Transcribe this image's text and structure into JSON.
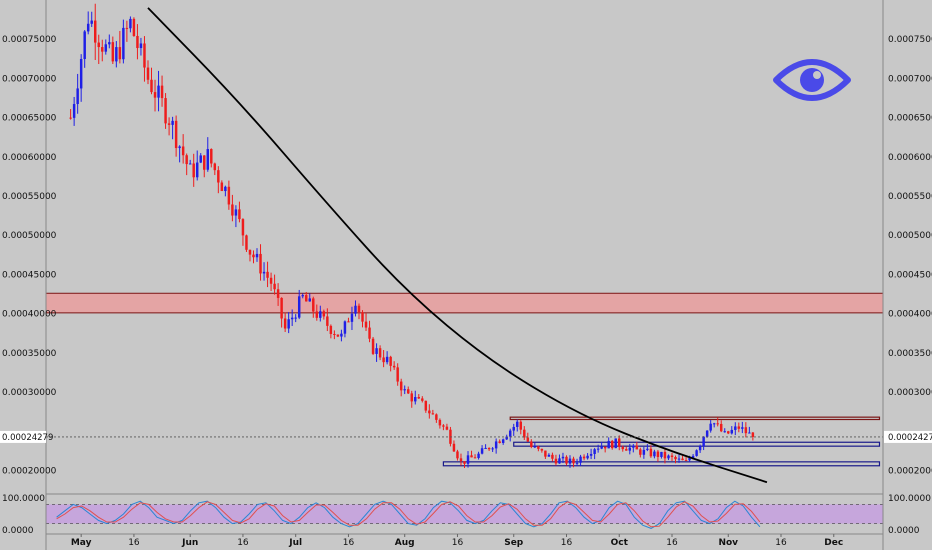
{
  "chart_data": [
    {
      "type": "candlestick",
      "title": "",
      "xlabel": "",
      "ylabel": "",
      "ylim": [
        0.00017,
        0.0008
      ],
      "x_ticks": [
        "May",
        "16",
        "Jun",
        "16",
        "Jul",
        "16",
        "Aug",
        "16",
        "Sep",
        "16",
        "Oct",
        "16",
        "Nov",
        "16",
        "Dec"
      ],
      "x_month_ticks": [
        "May",
        "Jun",
        "Jul",
        "Aug",
        "Sep",
        "Oct",
        "Nov",
        "Dec"
      ],
      "y_ticks": [
        "0.00075000",
        "0.00070000",
        "0.00065000",
        "0.00060000",
        "0.00055000",
        "0.00050000",
        "0.00045000",
        "0.00040000",
        "0.00035000",
        "0.00030000",
        "0.00020000"
      ],
      "last_price": 0.00024279,
      "last_price_label": "0.00024279",
      "up_color": "#1f1fe6",
      "down_color": "#ee1c1c",
      "key_points": [
        {
          "date": "2019-04-28",
          "price": 0.00065
        },
        {
          "date": "2019-05-03",
          "price": 0.00078
        },
        {
          "date": "2019-05-10",
          "price": 0.00072
        },
        {
          "date": "2019-05-15",
          "price": 0.00077
        },
        {
          "date": "2019-05-20",
          "price": 0.0007
        },
        {
          "date": "2019-05-26",
          "price": 0.00065
        },
        {
          "date": "2019-06-01",
          "price": 0.00058
        },
        {
          "date": "2019-06-06",
          "price": 0.0006
        },
        {
          "date": "2019-06-12",
          "price": 0.00055
        },
        {
          "date": "2019-06-18",
          "price": 0.00048
        },
        {
          "date": "2019-06-24",
          "price": 0.00044
        },
        {
          "date": "2019-06-28",
          "price": 0.00038
        },
        {
          "date": "2019-07-03",
          "price": 0.00042
        },
        {
          "date": "2019-07-09",
          "price": 0.00039
        },
        {
          "date": "2019-07-14",
          "price": 0.00037
        },
        {
          "date": "2019-07-18",
          "price": 0.00042
        },
        {
          "date": "2019-07-22",
          "price": 0.00036
        },
        {
          "date": "2019-07-27",
          "price": 0.00034
        },
        {
          "date": "2019-08-01",
          "price": 0.0003
        },
        {
          "date": "2019-08-07",
          "price": 0.00028
        },
        {
          "date": "2019-08-13",
          "price": 0.00025
        },
        {
          "date": "2019-08-17",
          "price": 0.00021
        },
        {
          "date": "2019-08-22",
          "price": 0.00022
        },
        {
          "date": "2019-08-28",
          "price": 0.00024
        },
        {
          "date": "2019-09-02",
          "price": 0.00026
        },
        {
          "date": "2019-09-06",
          "price": 0.00023
        },
        {
          "date": "2019-09-12",
          "price": 0.000215
        },
        {
          "date": "2019-09-18",
          "price": 0.00021
        },
        {
          "date": "2019-09-24",
          "price": 0.00023
        },
        {
          "date": "2019-09-30",
          "price": 0.000235
        },
        {
          "date": "2019-10-06",
          "price": 0.000225
        },
        {
          "date": "2019-10-12",
          "price": 0.00022
        },
        {
          "date": "2019-10-16",
          "price": 0.000215
        },
        {
          "date": "2019-10-20",
          "price": 0.00021
        },
        {
          "date": "2019-10-24",
          "price": 0.000235
        },
        {
          "date": "2019-10-27",
          "price": 0.000265
        },
        {
          "date": "2019-10-31",
          "price": 0.000245
        },
        {
          "date": "2019-11-04",
          "price": 0.000255
        },
        {
          "date": "2019-11-08",
          "price": 0.00024279
        }
      ],
      "resistance_zone": {
        "from": 0.000401,
        "to": 0.000426,
        "color": "#e4a4a4",
        "border": "#7a1515"
      },
      "range_boxes": [
        {
          "from_date": "2019-08-31",
          "to_date": "2019-12-14",
          "low": 0.000265,
          "high": 0.000268,
          "color": "#7a1515"
        },
        {
          "from_date": "2019-09-01",
          "to_date": "2019-12-14",
          "low": 0.000231,
          "high": 0.000236,
          "color": "#1a1a8a"
        },
        {
          "from_date": "2019-08-12",
          "to_date": "2019-12-14",
          "low": 0.000206,
          "high": 0.000211,
          "color": "#1a1a8a"
        }
      ],
      "trend_curve": [
        {
          "date": "2019-05-20",
          "price": 0.00079
        },
        {
          "date": "2019-06-15",
          "price": 0.00067
        },
        {
          "date": "2019-07-10",
          "price": 0.00054
        },
        {
          "date": "2019-08-01",
          "price": 0.00043
        },
        {
          "date": "2019-08-25",
          "price": 0.00034
        },
        {
          "date": "2019-09-20",
          "price": 0.00027
        },
        {
          "date": "2019-10-15",
          "price": 0.000225
        },
        {
          "date": "2019-11-12",
          "price": 0.000185
        }
      ]
    },
    {
      "type": "line",
      "title": "",
      "indicator": "stochastic",
      "ylim": [
        0,
        100
      ],
      "y_ticks": [
        "100.0000",
        "0.0000"
      ],
      "band": {
        "from": 20,
        "to": 80,
        "color": "#c6a6dc"
      },
      "series": [
        {
          "color": "#2b86d4",
          "values": [
            40,
            60,
            80,
            70,
            50,
            30,
            20,
            30,
            50,
            80,
            90,
            70,
            40,
            30,
            20,
            30,
            60,
            85,
            90,
            70,
            40,
            20,
            25,
            50,
            80,
            85,
            60,
            30,
            20,
            40,
            70,
            85,
            70,
            40,
            20,
            10,
            20,
            50,
            80,
            90,
            80,
            50,
            20,
            15,
            35,
            70,
            90,
            85,
            60,
            30,
            20,
            30,
            60,
            85,
            80,
            50,
            20,
            10,
            20,
            50,
            85,
            90,
            70,
            40,
            20,
            30,
            70,
            90,
            80,
            40,
            15,
            5,
            20,
            60,
            85,
            90,
            60,
            30,
            20,
            35,
            70,
            90,
            75,
            40,
            10
          ]
        },
        {
          "color": "#e05050",
          "values": [
            35,
            50,
            70,
            75,
            60,
            40,
            25,
            25,
            40,
            65,
            85,
            80,
            55,
            35,
            25,
            25,
            45,
            70,
            88,
            80,
            55,
            30,
            22,
            35,
            65,
            82,
            75,
            45,
            25,
            30,
            55,
            78,
            78,
            55,
            30,
            15,
            15,
            35,
            65,
            85,
            85,
            65,
            35,
            18,
            25,
            52,
            80,
            88,
            75,
            45,
            25,
            25,
            45,
            72,
            82,
            65,
            35,
            15,
            15,
            35,
            70,
            88,
            80,
            55,
            30,
            25,
            50,
            80,
            85,
            60,
            28,
            10,
            12,
            40,
            72,
            88,
            75,
            45,
            25,
            28,
            52,
            80,
            82,
            58,
            25
          ]
        }
      ]
    }
  ]
}
